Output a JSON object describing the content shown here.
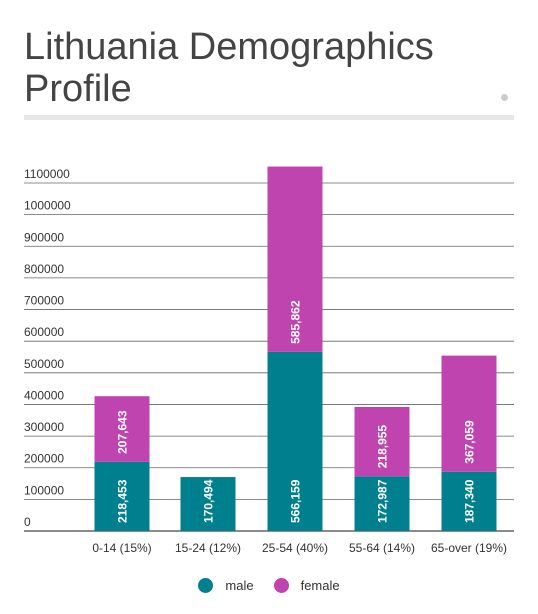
{
  "header": {
    "title": "Lithuania Demographics Profile"
  },
  "colors": {
    "male": "#00808f",
    "female": "#bf44b0",
    "gridline": "#666666",
    "axis_text": "#333333",
    "bar_label": "#ffffff"
  },
  "chart_data": {
    "type": "bar",
    "stacked": true,
    "categories": [
      "0-14 (15%)",
      "15-24 (12%)",
      "25-54 (40%)",
      "55-64 (14%)",
      "65-over (19%)"
    ],
    "series": [
      {
        "name": "male",
        "values": [
          218453,
          170494,
          566159,
          172987,
          187340
        ],
        "labels": [
          "218,453",
          "170,494",
          "566,159",
          "172,987",
          "187,340"
        ]
      },
      {
        "name": "female",
        "values": [
          207643,
          0,
          585862,
          218955,
          367059
        ],
        "labels": [
          "207,643",
          "",
          "585,862",
          "218,955",
          "367,059"
        ]
      }
    ],
    "ylim": [
      0,
      1100000
    ],
    "yticks": [
      0,
      100000,
      200000,
      300000,
      400000,
      500000,
      600000,
      700000,
      800000,
      900000,
      1000000,
      1100000
    ],
    "ytick_labels": [
      "0",
      "100000",
      "200000",
      "300000",
      "400000",
      "500000",
      "600000",
      "700000",
      "800000",
      "900000",
      "1000000",
      "1100000"
    ],
    "grid": true,
    "legend_position": "bottom",
    "title": "Lithuania Demographics Profile",
    "xlabel": "",
    "ylabel": ""
  }
}
